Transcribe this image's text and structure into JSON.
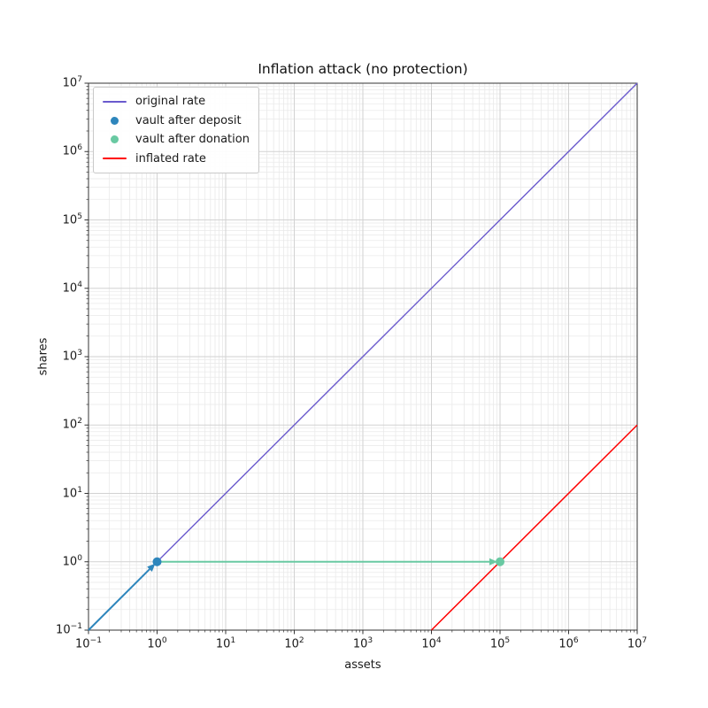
{
  "chart_data": {
    "type": "line",
    "scale": "log-log",
    "title": "Inflation attack (no protection)",
    "xlabel": "assets",
    "ylabel": "shares",
    "xlim": [
      0.1,
      10000000
    ],
    "ylim": [
      0.1,
      10000000
    ],
    "x_tick_exponents": [
      -1,
      0,
      1,
      2,
      3,
      4,
      5,
      6,
      7
    ],
    "y_tick_exponents": [
      -1,
      0,
      1,
      2,
      3,
      4,
      5,
      6,
      7
    ],
    "grid": "major+minor",
    "legend_position": "upper-left",
    "colors": {
      "major_grid": "#d2d2d2",
      "minor_grid": "#e9e9e9",
      "spine": "#333333",
      "text": "#1a1a1a"
    },
    "series": [
      {
        "name": "original rate",
        "kind": "line",
        "color": "#6a5acd",
        "line_width": 1.4,
        "points": [
          [
            0.1,
            0.1
          ],
          [
            10000000,
            10000000
          ]
        ]
      },
      {
        "name": "vault after deposit",
        "kind": "scatter",
        "color": "#2e86bc",
        "marker_radius": 5,
        "points": [
          [
            1,
            1
          ]
        ]
      },
      {
        "name": "vault after donation",
        "kind": "scatter",
        "color": "#69c9a2",
        "marker_radius": 5,
        "points": [
          [
            100000,
            1
          ]
        ]
      },
      {
        "name": "inflated rate",
        "kind": "line",
        "color": "#ff0000",
        "line_width": 1.5,
        "points": [
          [
            10000,
            0.1
          ],
          [
            10000000,
            100
          ]
        ]
      }
    ],
    "annotations": [
      {
        "kind": "arrow",
        "from": [
          0.1,
          0.1
        ],
        "to": [
          1,
          1
        ],
        "color": "#2e86bc",
        "line_width": 2
      },
      {
        "kind": "arrow",
        "from": [
          1,
          1
        ],
        "to": [
          100000,
          1
        ],
        "color": "#69c9a2",
        "line_width": 2
      }
    ]
  }
}
